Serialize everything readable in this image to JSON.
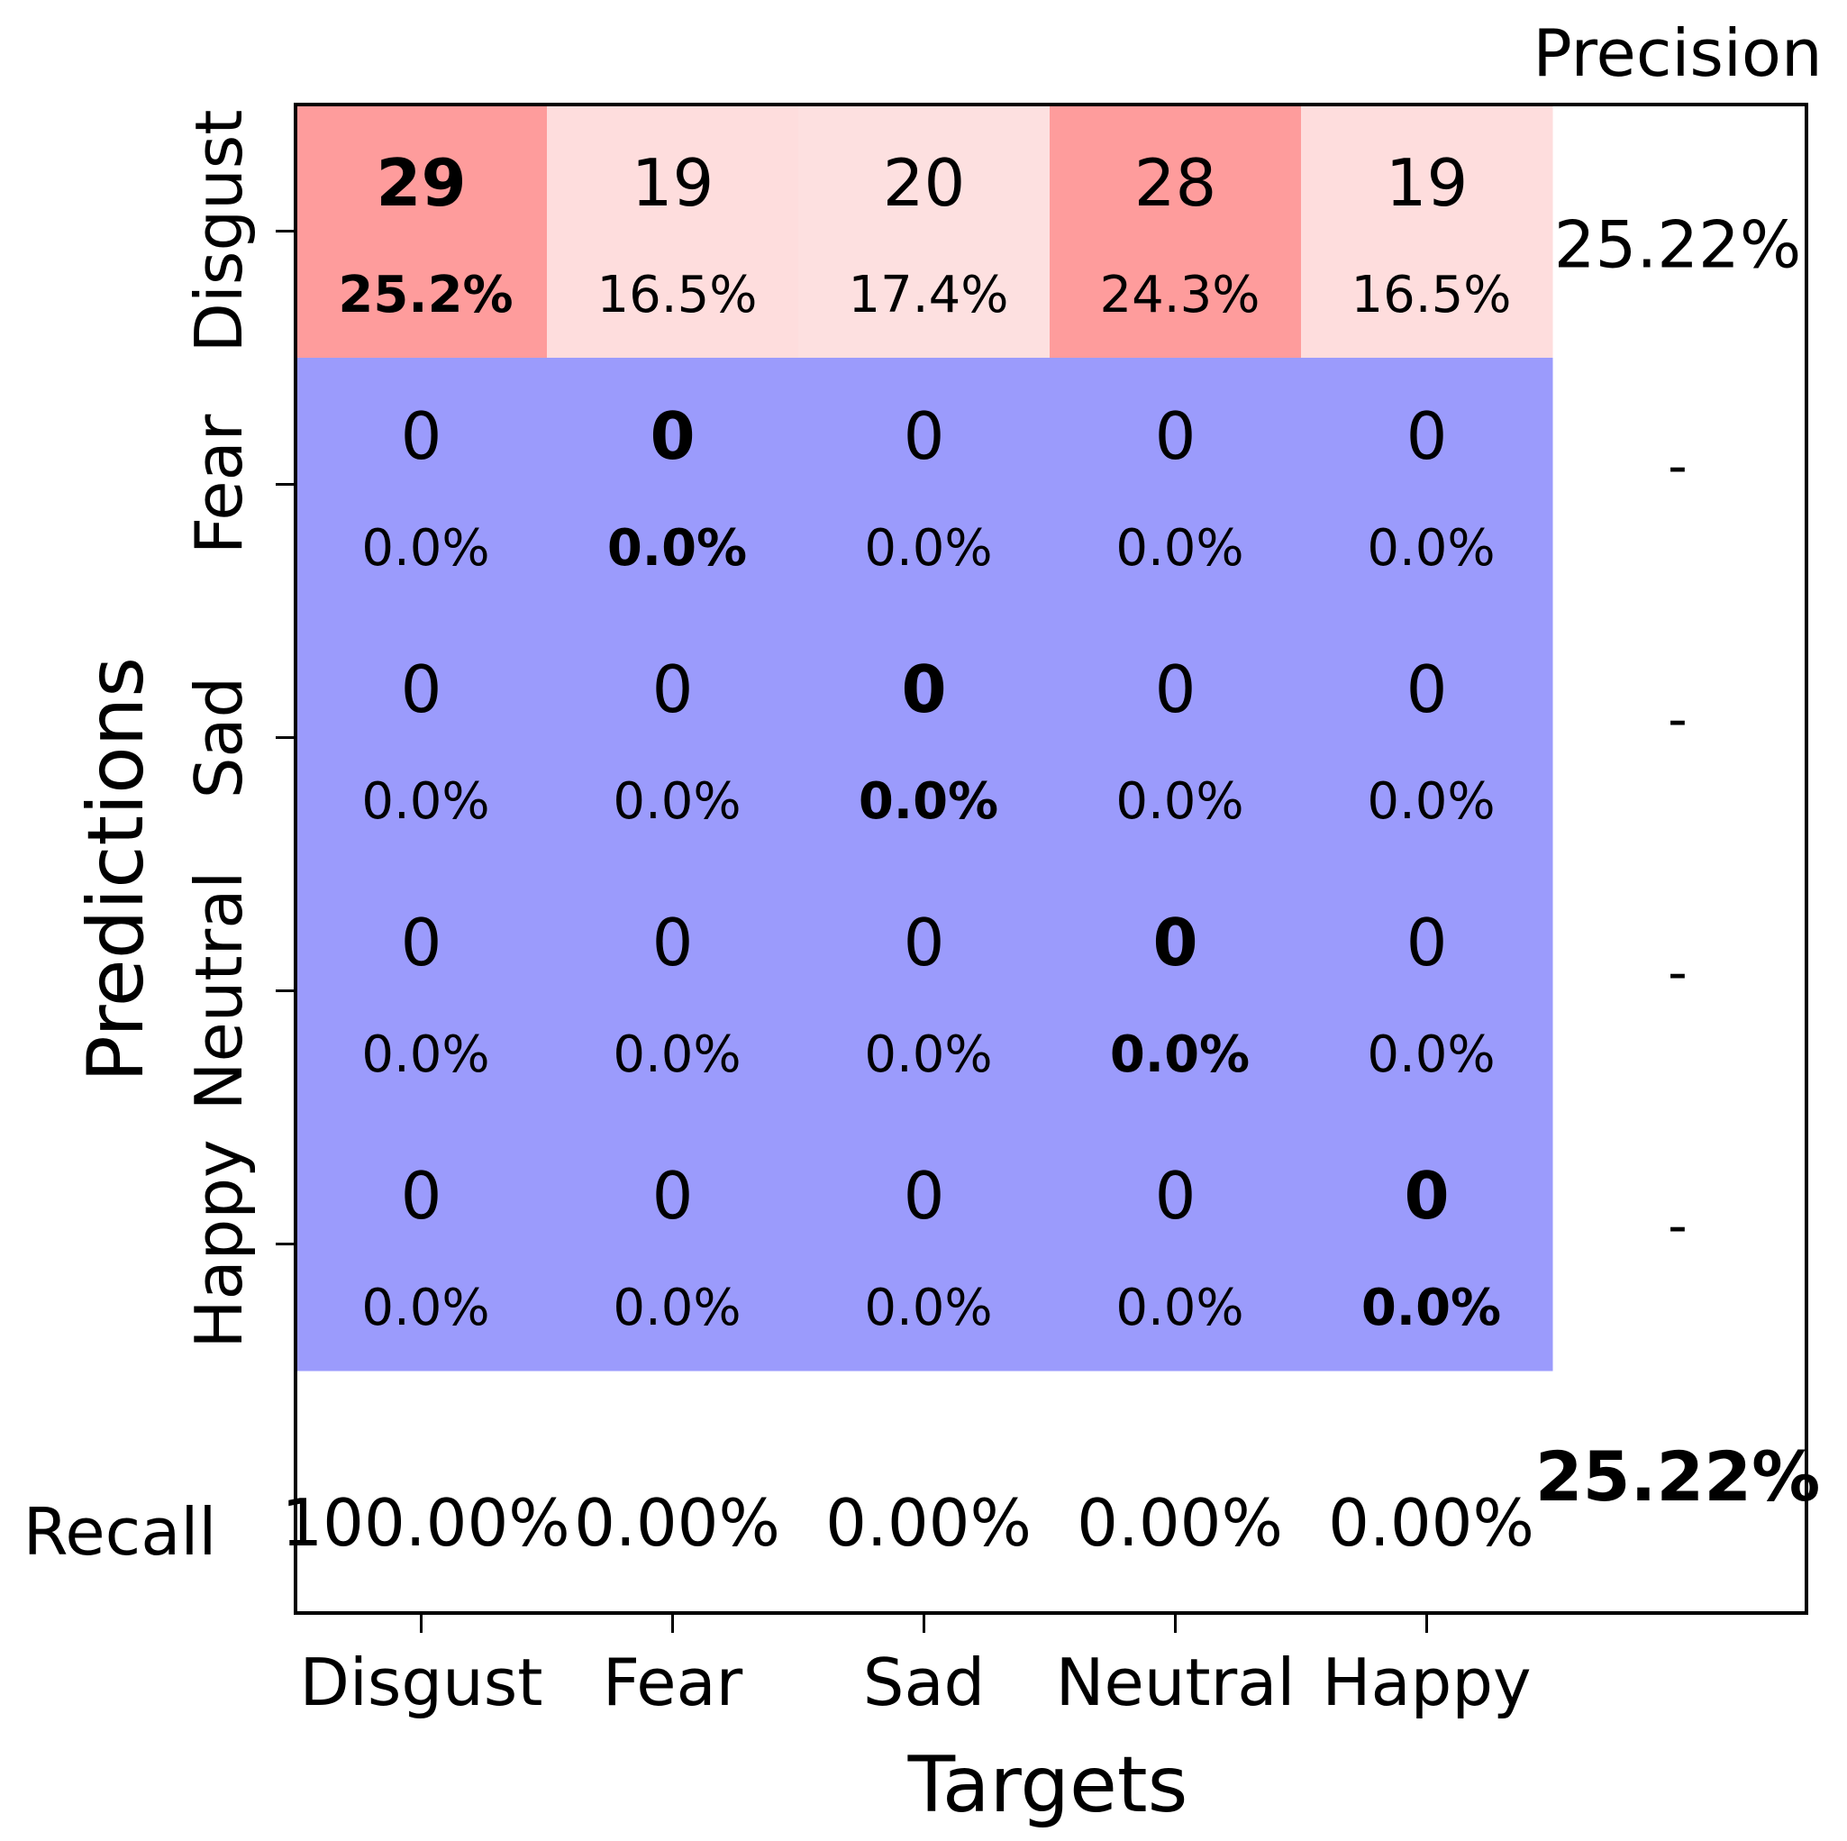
{
  "colors": {
    "diag_high": "#fe9c9c",
    "red_light": "#fedddd",
    "red_lighter": "#fde0e0",
    "blue": "#9b9bfc",
    "frame": "#000000",
    "text": "#000000"
  },
  "chart_data": {
    "type": "heatmap",
    "title": "",
    "xlabel": "Targets",
    "ylabel": "Predictions",
    "x_categories": [
      "Disgust",
      "Fear",
      "Sad",
      "Neutral",
      "Happy"
    ],
    "y_categories": [
      "Disgust",
      "Fear",
      "Sad",
      "Neutral",
      "Happy"
    ],
    "counts": [
      [
        29,
        19,
        20,
        28,
        19
      ],
      [
        0,
        0,
        0,
        0,
        0
      ],
      [
        0,
        0,
        0,
        0,
        0
      ],
      [
        0,
        0,
        0,
        0,
        0
      ],
      [
        0,
        0,
        0,
        0,
        0
      ]
    ],
    "percents": [
      [
        "25.2%",
        "16.5%",
        "17.4%",
        "24.3%",
        "16.5%"
      ],
      [
        "0.0%",
        "0.0%",
        "0.0%",
        "0.0%",
        "0.0%"
      ],
      [
        "0.0%",
        "0.0%",
        "0.0%",
        "0.0%",
        "0.0%"
      ],
      [
        "0.0%",
        "0.0%",
        "0.0%",
        "0.0%",
        "0.0%"
      ],
      [
        "0.0%",
        "0.0%",
        "0.0%",
        "0.0%",
        "0.0%"
      ]
    ],
    "precision_label": "Precision",
    "precision": [
      "25.22%",
      "-",
      "-",
      "-",
      "-"
    ],
    "recall_label": "Recall",
    "recall": [
      "100.00%",
      "0.00%",
      "0.00%",
      "0.00%",
      "0.00%"
    ],
    "overall_accuracy": "25.22%",
    "diagonal_bold": true
  }
}
